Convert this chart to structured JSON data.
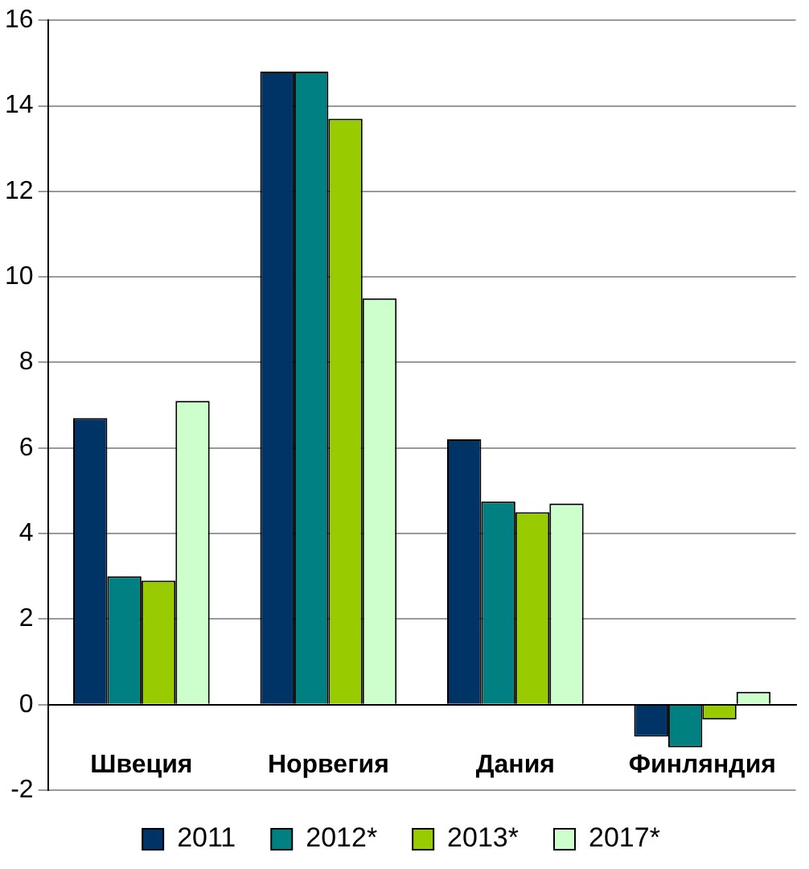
{
  "chart_data": {
    "type": "bar",
    "categories": [
      "Швеция",
      "Норвегия",
      "Дания",
      "Финляндия"
    ],
    "series": [
      {
        "name": "2011",
        "color": "#003366",
        "values": [
          6.7,
          14.8,
          6.2,
          -0.75
        ]
      },
      {
        "name": "2012*",
        "color": "#008080",
        "values": [
          3.0,
          14.8,
          4.75,
          -1.0
        ]
      },
      {
        "name": "2013*",
        "color": "#99cc00",
        "values": [
          2.9,
          13.7,
          4.5,
          -0.35
        ]
      },
      {
        "name": "2017*",
        "color": "#ccffcc",
        "values": [
          7.1,
          9.5,
          4.7,
          0.3
        ]
      }
    ],
    "ylim": [
      -2,
      16
    ],
    "yticks": [
      -2,
      0,
      2,
      4,
      6,
      8,
      10,
      12,
      14,
      16
    ],
    "grid": "y",
    "legend": "bottom"
  }
}
